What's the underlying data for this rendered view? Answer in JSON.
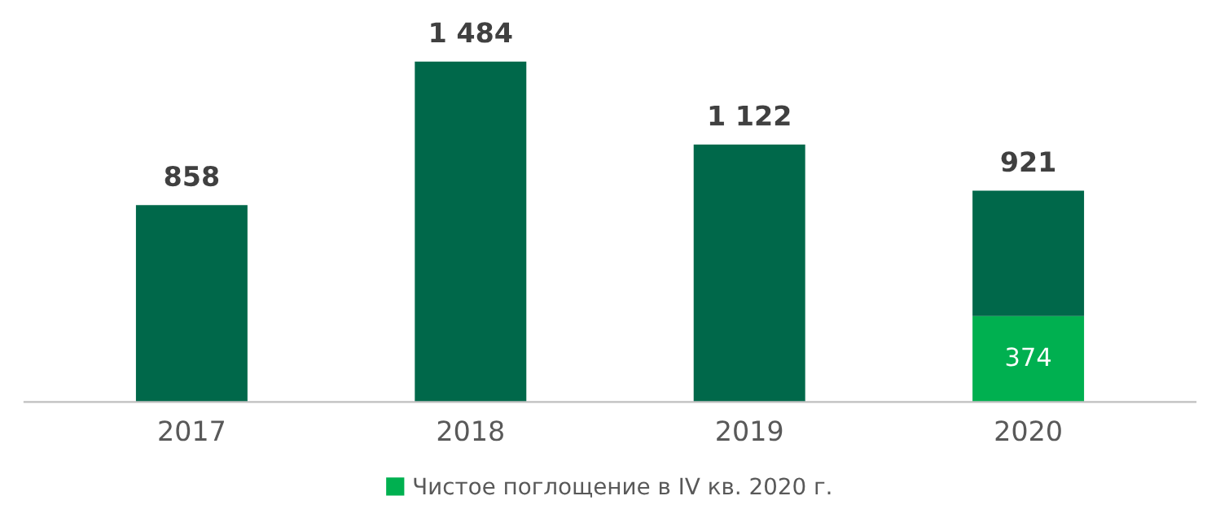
{
  "chart_data": {
    "type": "bar",
    "stacked": true,
    "categories": [
      "2017",
      "2018",
      "2019",
      "2020"
    ],
    "series": [
      {
        "name": "Чистое поглощение в IV кв. 2020 г.",
        "color": "#00b050",
        "values": [
          null,
          null,
          null,
          374
        ],
        "value_labels": [
          null,
          null,
          null,
          "374"
        ]
      },
      {
        "color": "#00684a",
        "values": [
          858,
          1484,
          1122,
          547
        ]
      }
    ],
    "totals": [
      "858",
      "1 484",
      "1 122",
      "921"
    ],
    "legend": "bottom"
  }
}
